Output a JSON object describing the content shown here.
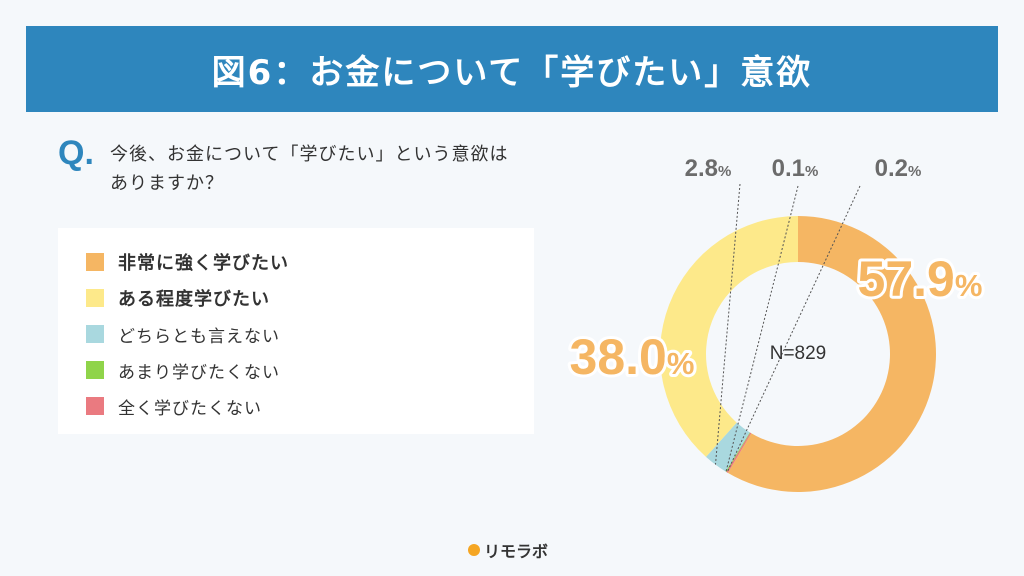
{
  "header": {
    "title": "図6：お金について「学びたい」意欲"
  },
  "question": {
    "mark": "Q.",
    "text": "今後、お金について「学びたい」という意欲はありますか？"
  },
  "chart_data": {
    "type": "pie",
    "donut": true,
    "title": "",
    "center_label": "N=829",
    "categories": [
      "非常に強く学びたい",
      "ある程度学びたい",
      "どちらとも言えない",
      "あまり学びたくない",
      "全く学びたくない"
    ],
    "values": [
      57.9,
      38.0,
      2.8,
      0.1,
      0.2
    ],
    "value_labels": [
      "57.9",
      "38.0",
      "2.8",
      "0.1",
      "0.2"
    ],
    "unit": "%",
    "colors": [
      "#f5b663",
      "#fde98a",
      "#a9d8df",
      "#8fd44a",
      "#ea7a80"
    ],
    "legend": "left"
  },
  "logo": {
    "text": "リモラボ"
  }
}
